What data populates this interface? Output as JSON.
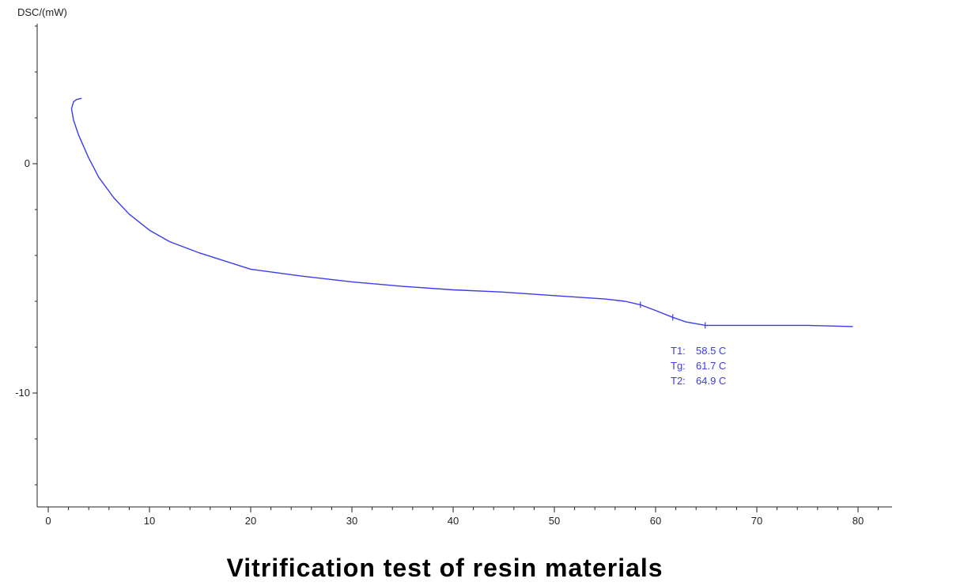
{
  "chart_data": {
    "type": "line",
    "title": "Vitrification test of resin materials",
    "ylabel": "DSC/(mW)",
    "xlabel": "",
    "xlim": [
      -1,
      83
    ],
    "ylim": [
      -15,
      6.3
    ],
    "xticks": [
      0,
      10,
      20,
      30,
      40,
      50,
      60,
      70,
      80
    ],
    "xtick_labels": [
      "0",
      "10",
      "20",
      "30",
      "40",
      "50",
      "60",
      "70",
      "80"
    ],
    "yticks": [
      0,
      -10
    ],
    "ytick_labels": [
      "0",
      "-10"
    ],
    "grid": false,
    "series": [
      {
        "name": "DSC",
        "color": "#3a3af0",
        "x": [
          3.3,
          2.8,
          2.5,
          2.3,
          2.5,
          3.0,
          4.0,
          5.0,
          6.5,
          8.0,
          10.0,
          12.0,
          15.0,
          20.0,
          25.0,
          30.0,
          35.0,
          40.0,
          45.0,
          50.0,
          55.0,
          57.0,
          58.5,
          60.0,
          61.7,
          63.0,
          64.9,
          66.0,
          70.0,
          75.0,
          79.5
        ],
        "y": [
          2.85,
          2.8,
          2.7,
          2.4,
          1.9,
          1.25,
          0.25,
          -0.6,
          -1.5,
          -2.2,
          -2.9,
          -3.4,
          -3.9,
          -4.6,
          -4.9,
          -5.15,
          -5.35,
          -5.5,
          -5.6,
          -5.75,
          -5.9,
          -6.0,
          -6.15,
          -6.4,
          -6.7,
          -6.9,
          -7.05,
          -7.05,
          -7.05,
          -7.05,
          -7.1
        ]
      }
    ],
    "annotations": [
      {
        "label": "T1:",
        "value": "58.5 C",
        "x": 58.5
      },
      {
        "label": "Tg:",
        "value": "61.7 C",
        "x": 61.7
      },
      {
        "label": "T2:",
        "value": "64.9 C",
        "x": 64.9
      }
    ]
  }
}
